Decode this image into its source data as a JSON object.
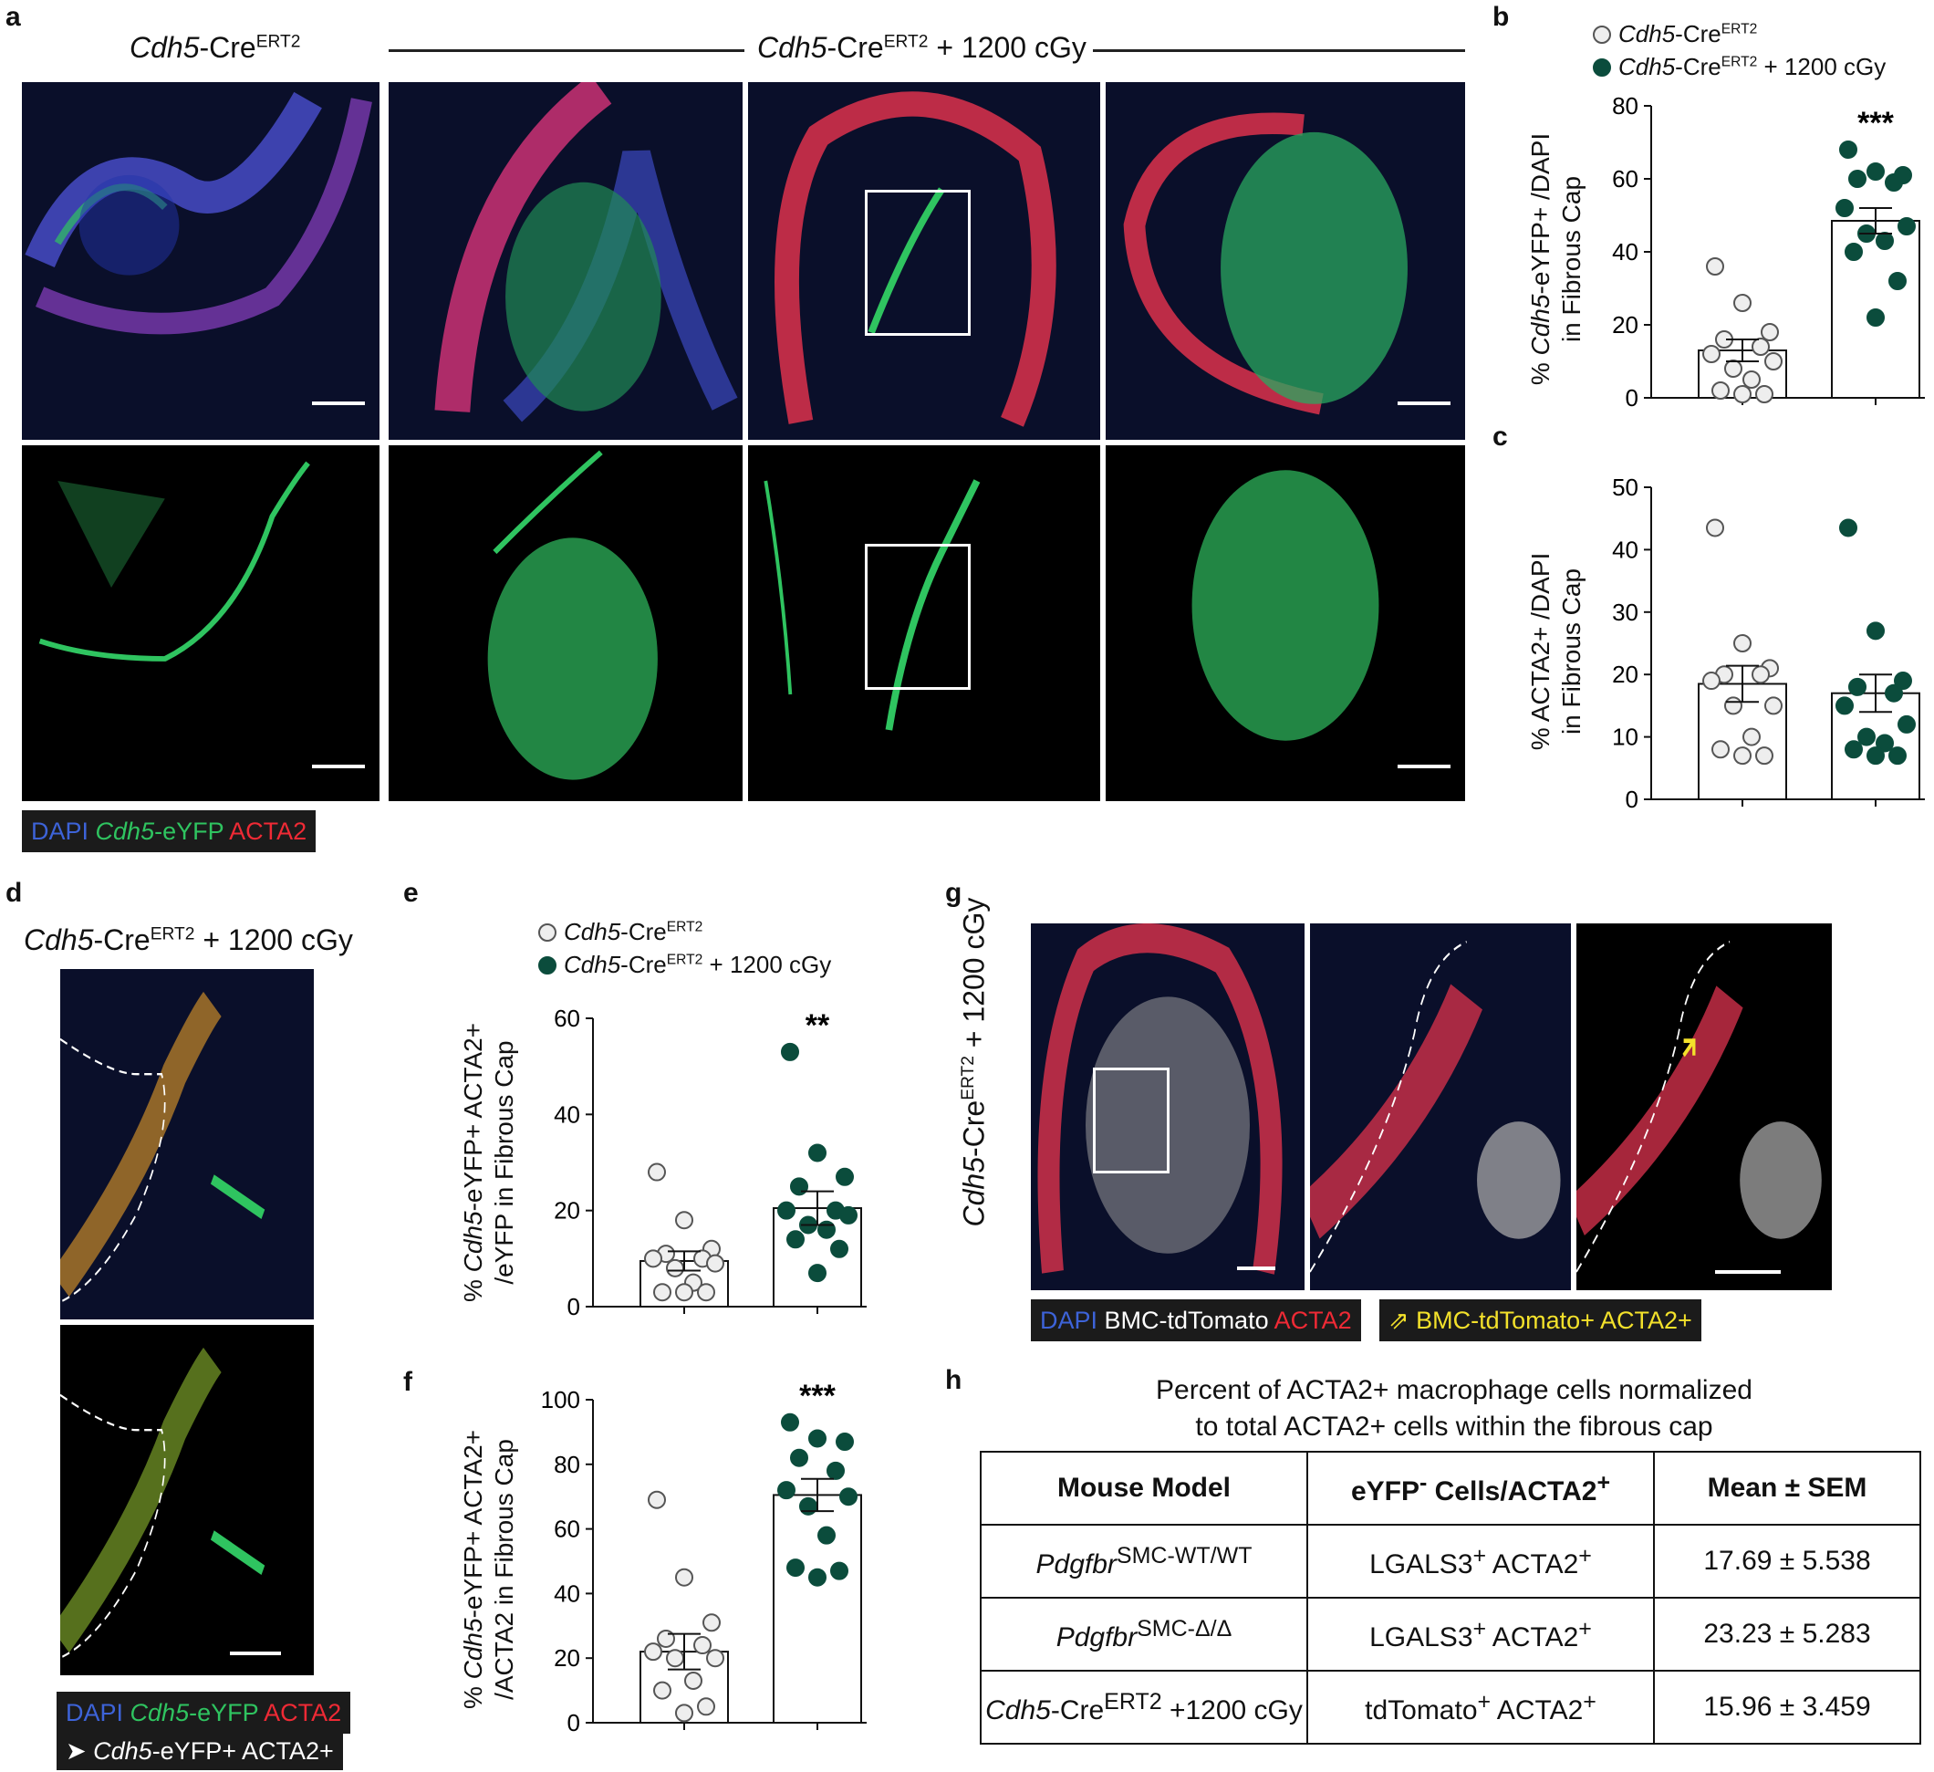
{
  "panels": {
    "a": "a",
    "b": "b",
    "c": "c",
    "d": "d",
    "e": "e",
    "f": "f",
    "g": "g",
    "h": "h"
  },
  "panel_a": {
    "control_label": "Cdh5",
    "control_suffix": "-Cre",
    "control_sup": "ERT2",
    "irr_label": "Cdh5",
    "irr_suffix": "-Cre",
    "irr_sup": "ERT2",
    "irr_after": " + 1200 cGy",
    "legend": {
      "dapi": "DAPI",
      "cdh5": "Cdh5",
      "eyfp": "-eYFP",
      "acta2": "ACTA2"
    }
  },
  "panel_d": {
    "title_a": "Cdh5",
    "title_b": "-Cre",
    "title_sup": "ERT2",
    "title_c": " + 1200 cGy",
    "legend1": {
      "dapi": "DAPI",
      "cdh5": "Cdh5",
      "eyfp": "-eYFP",
      "acta2": "ACTA2"
    },
    "legend2": {
      "arrow": "➤",
      "cdh5": "Cdh5",
      "rest": "-eYFP+ ACTA2+"
    }
  },
  "panel_g": {
    "side_a": "Cdh5",
    "side_b": "-Cre",
    "side_sup": "ERT2",
    "side_c": " + 1200 cGy",
    "legend1": {
      "dapi": "DAPI",
      "bmc": "BMC-tdTomato",
      "acta2": "ACTA2"
    },
    "legend2": {
      "arrow": "⇗",
      "text": "BMC-tdTomato+ ACTA2+"
    }
  },
  "legend_groups": {
    "control_a": "Cdh5",
    "control_b": "-Cre",
    "control_sup": "ERT2",
    "irr_a": "Cdh5",
    "irr_b": "-Cre",
    "irr_sup": "ERT2",
    "irr_c": " + 1200 cGy"
  },
  "colors": {
    "control_fill": "#eeeeee",
    "irradiated_fill": "#0b4c3c",
    "dapi": "#3d63d8",
    "eyfp": "#2fc460",
    "acta2": "#ef2a35",
    "arrow": "#f3e12b"
  },
  "chart_data": [
    {
      "id": "b",
      "type": "scatter",
      "categories": [
        "Cdh5-CreERT2",
        "Cdh5-CreERT2 + 1200 cGy"
      ],
      "ylabel_a": "% ",
      "ylabel_b": "Cdh5",
      "ylabel_c": "-eYFP+ /DAPI",
      "ylabel_line2": "in Fibrous Cap",
      "ylim": [
        0,
        80
      ],
      "yticks": [
        0,
        20,
        40,
        60,
        80
      ],
      "significance": "***",
      "series": [
        {
          "values": [
            36,
            26,
            18,
            16,
            14,
            12,
            10,
            8,
            5,
            2,
            1,
            1
          ],
          "mean": 13,
          "sem": 3
        },
        {
          "values": [
            68,
            62,
            61,
            60,
            59,
            52,
            47,
            45,
            43,
            40,
            32,
            22
          ],
          "mean": 48.5,
          "sem": 3.5
        }
      ]
    },
    {
      "id": "c",
      "type": "scatter",
      "categories": [
        "Cdh5-CreERT2",
        "Cdh5-CreERT2 + 1200 cGy"
      ],
      "ylabel_a": "% ACTA2+ /DAPI",
      "ylabel_line2": "in Fibrous Cap",
      "ylim": [
        0,
        50
      ],
      "yticks": [
        0,
        10,
        20,
        30,
        40,
        50
      ],
      "series": [
        {
          "values": [
            43.5,
            25,
            21,
            20,
            20,
            19,
            15,
            15,
            10,
            8,
            7,
            7
          ],
          "mean": 18.5,
          "sem": 2.9
        },
        {
          "values": [
            43.5,
            27,
            19,
            18,
            17,
            15,
            12,
            10,
            9,
            8,
            7,
            7
          ],
          "mean": 17,
          "sem": 3
        }
      ]
    },
    {
      "id": "e",
      "type": "scatter",
      "categories": [
        "Cdh5-CreERT2",
        "Cdh5-CreERT2 + 1200 cGy"
      ],
      "ylabel_a": "% ",
      "ylabel_b": "Cdh5",
      "ylabel_c": "-eYFP+ ACTA2+",
      "ylabel_line2": "/eYFP in Fibrous Cap",
      "ylim": [
        0,
        60
      ],
      "yticks": [
        0,
        20,
        40,
        60
      ],
      "significance": "**",
      "series": [
        {
          "values": [
            28,
            18,
            12,
            11,
            10,
            10,
            9,
            8,
            5,
            3,
            3,
            3
          ],
          "mean": 9.5,
          "sem": 2
        },
        {
          "values": [
            53,
            32,
            27,
            25,
            20,
            20,
            19,
            17,
            16,
            14,
            12,
            7
          ],
          "mean": 20.5,
          "sem": 3.5
        }
      ]
    },
    {
      "id": "f",
      "type": "scatter",
      "categories": [
        "Cdh5-CreERT2",
        "Cdh5-CreERT2 + 1200 cGy"
      ],
      "ylabel_a": "% ",
      "ylabel_b": "Cdh5",
      "ylabel_c": "-eYFP+ ACTA2+",
      "ylabel_line2": "/ACTA2 in Fibrous Cap",
      "ylim": [
        0,
        100
      ],
      "yticks": [
        0,
        20,
        40,
        60,
        80,
        100
      ],
      "significance": "***",
      "series": [
        {
          "values": [
            69,
            45,
            31,
            26,
            24,
            22,
            20,
            20,
            13,
            10,
            5,
            3
          ],
          "mean": 22,
          "sem": 5.5
        },
        {
          "values": [
            93,
            88,
            87,
            82,
            78,
            72,
            70,
            67,
            58,
            48,
            47,
            45
          ],
          "mean": 70.5,
          "sem": 5
        }
      ]
    }
  ],
  "table_h": {
    "title_line1": "Percent of ACTA2+ macrophage cells normalized",
    "title_line2": "to total ACTA2+ cells within the fibrous cap",
    "headers": [
      "Mouse Model",
      "eYFP",
      "-",
      " Cells/ACTA2",
      "+",
      "Mean ± SEM"
    ],
    "rows": [
      {
        "m_a": "Pdgfbr",
        "m_sup": "SMC-WT/WT",
        "m_b": "",
        "cells_a": "LGALS3",
        "cells_sup1": "+",
        "cells_b": " ACTA2",
        "cells_sup2": "+",
        "mean": "17.69 ± 5.538"
      },
      {
        "m_a": "Pdgfbr",
        "m_sup": "SMC-Δ/Δ",
        "m_b": "",
        "cells_a": "LGALS3",
        "cells_sup1": "+",
        "cells_b": " ACTA2",
        "cells_sup2": "+",
        "mean": "23.23 ± 5.283"
      },
      {
        "m_a": "Cdh5",
        "m_sup": "ERT2",
        "m_b": " +1200 cGy",
        "m_mid": "-Cre",
        "cells_a": "tdTomato",
        "cells_sup1": "+",
        "cells_b": " ACTA2",
        "cells_sup2": "+",
        "mean": "15.96 ± 3.459"
      }
    ]
  }
}
